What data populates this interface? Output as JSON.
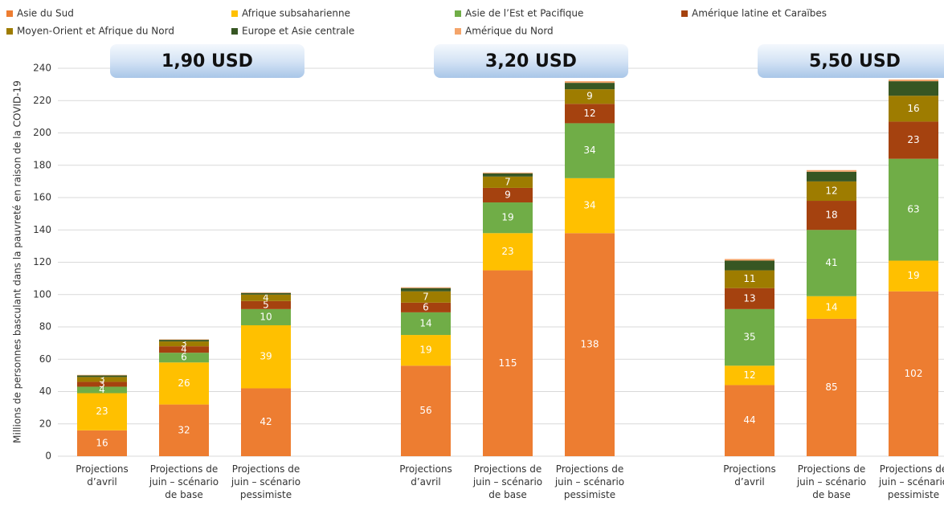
{
  "chart_data": {
    "type": "stacked_bar",
    "ylabel": "Millions de personnes basculant dans la pauvreté en raison de la COVID-19",
    "group_labels": [
      "1,90 USD",
      "3,20 USD",
      "5,50 USD"
    ],
    "categories": [
      "Projections\nd’avril",
      "Projections de\njuin – scénario\nde base",
      "Projections de\njuin – scénario\npessimiste",
      "Projections\nd’avril",
      "Projections de\njuin – scénario\nde base",
      "Projections de\njuin – scénario\npessimiste",
      "Projections\nd’avril",
      "Projections de\njuin – scénario\nde base",
      "Projections de\njuin – scénario\npessimiste"
    ],
    "series": [
      {
        "name": "Asie du Sud",
        "color": "#ed7d31",
        "show_labels": true,
        "values": [
          16,
          32,
          42,
          56,
          115,
          138,
          44,
          85,
          102
        ]
      },
      {
        "name": "Afrique subsaharienne",
        "color": "#ffc000",
        "show_labels": true,
        "values": [
          23,
          26,
          39,
          19,
          23,
          34,
          12,
          14,
          19
        ]
      },
      {
        "name": "Asie de l’Est et Pacifique",
        "color": "#70ad47",
        "show_labels": true,
        "values": [
          4,
          6,
          10,
          14,
          19,
          34,
          35,
          41,
          63
        ]
      },
      {
        "name": "Amérique latine et Caraïbes",
        "color": "#a5420f",
        "show_labels": true,
        "values": [
          3,
          4,
          5,
          6,
          9,
          12,
          13,
          18,
          23
        ]
      },
      {
        "name": "Moyen-Orient et Afrique du Nord",
        "color": "#9e7c00",
        "show_labels": true,
        "values": [
          3,
          3,
          4,
          7,
          7,
          9,
          11,
          12,
          16
        ]
      },
      {
        "name": "Europe et Asie centrale",
        "color": "#375623",
        "show_labels": false,
        "values": [
          1,
          1,
          1,
          2,
          2,
          4,
          6,
          6,
          9
        ]
      },
      {
        "name": "Amérique du Nord",
        "color": "#f4a46a",
        "show_labels": false,
        "values": [
          0.3,
          0.3,
          0.3,
          0.5,
          0.5,
          1,
          1,
          1,
          1
        ]
      }
    ],
    "ylim": [
      0,
      240
    ],
    "yticks": [
      0,
      20,
      40,
      60,
      80,
      100,
      120,
      140,
      160,
      180,
      200,
      220,
      240
    ],
    "grid": true,
    "legend": "top"
  }
}
